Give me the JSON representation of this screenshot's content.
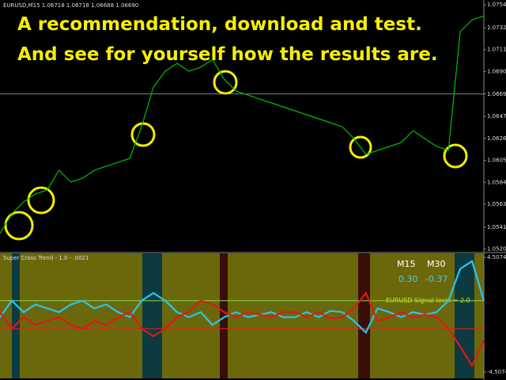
{
  "chart_data": [
    {
      "type": "line",
      "symbol_header": "EURUSD,M15  1.06718 1.06718 1.06688 1.06690",
      "annotations": [
        "A recommendation, download and test.",
        "And see for yourself how the results are."
      ],
      "color": "#00c000",
      "values": [
        1.05354,
        1.05543,
        1.05657,
        1.05733,
        1.05771,
        1.0596,
        1.05847,
        1.05884,
        1.0596,
        1.05998,
        1.06036,
        1.06074,
        1.06377,
        1.06756,
        1.06908,
        1.06984,
        1.06908,
        1.06946,
        1.07021,
        1.06832,
        1.06718,
        1.0668,
        1.06642,
        1.06605,
        1.06567,
        1.06529,
        1.06491,
        1.06453,
        1.06415,
        1.06377,
        1.06263,
        1.06112,
        1.0615,
        1.06188,
        1.06226,
        1.06339,
        1.06263,
        1.06188,
        1.0615,
        1.07287,
        1.074,
        1.07438
      ],
      "ylim": [
        1.0518,
        1.0759
      ],
      "yticks": [
        1.07545,
        1.07325,
        1.07115,
        1.06905,
        {
          "value": 1.0669,
          "label": "1.06690"
        },
        1.06475,
        1.06265,
        1.06055,
        1.05845,
        1.05635,
        1.05415,
        1.05205
      ],
      "current_level": 1.0669
    },
    {
      "type": "line",
      "indicator_name": "Super Cross Trend - 1.0 - .0021",
      "timeframes": [
        "M15",
        "M30"
      ],
      "readings": [
        "0.30",
        "-0.37"
      ],
      "signal_text": "EURUSD Signal level = 2.0",
      "ylim": [
        -4.5074,
        4.5074
      ],
      "yticks": [
        4.5074,
        -4.5074
      ],
      "levels": [
        {
          "value": 1.1,
          "color": "#7fd040"
        },
        {
          "value": -1.1,
          "color": "#e02020"
        }
      ],
      "series": [
        {
          "color": "#29c5f0",
          "values": [
            -0.2,
            1.1,
            0.2,
            0.8,
            0.5,
            0.2,
            0.8,
            1.1,
            0.5,
            0.8,
            0.2,
            -0.2,
            1.1,
            1.7,
            1.1,
            0.2,
            -0.2,
            0.2,
            -0.8,
            -0.2,
            0.2,
            -0.2,
            0,
            0.2,
            -0.2,
            -0.2,
            0.2,
            -0.2,
            0.3,
            0.2,
            -0.5,
            -1.4,
            0.5,
            0.2,
            -0.2,
            0.2,
            0,
            0.2,
            1.1,
            3.6,
            4.2,
            1.1
          ]
        },
        {
          "color": "#e01818",
          "values": [
            0.2,
            -1.1,
            -0.2,
            -0.8,
            -0.5,
            -0.2,
            -0.8,
            -1.1,
            -0.5,
            -0.8,
            -0.2,
            0.2,
            -1.1,
            -1.7,
            -1.1,
            -0.2,
            0.2,
            1.1,
            0.8,
            0.2,
            -0.2,
            0.2,
            0,
            -0.2,
            0.2,
            0.2,
            -0.2,
            0.2,
            -0.3,
            -0.2,
            0.5,
            1.7,
            -0.5,
            -0.2,
            0.2,
            -0.2,
            0,
            -0.2,
            -1.1,
            -2.5,
            -4.0,
            -2.0
          ]
        }
      ]
    }
  ]
}
